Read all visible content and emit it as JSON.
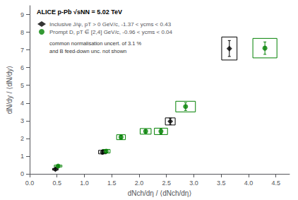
{
  "chart_data": {
    "type": "scatter",
    "title": "ALICE p-Pb",
    "subtitle": " √sNN = 5.02 TeV",
    "x_label": "dNch/dη / ⟨dNch/dη⟩",
    "y_label": "dN/dy / ⟨dN/dy⟩",
    "xlim": [
      0,
      4.75
    ],
    "ylim": [
      0,
      9.5
    ],
    "xticks": [
      {
        "value": 0,
        "label": "0.0"
      },
      0.5,
      {
        "value": 1,
        "label": "1.0"
      },
      1.5,
      {
        "value": 2,
        "label": "2.0"
      },
      2.5,
      {
        "value": 3,
        "label": "3.0"
      },
      3.5,
      {
        "value": 4,
        "label": "4.0"
      },
      4.5
    ],
    "yticks": [
      0,
      1,
      2,
      3,
      4,
      5,
      6,
      7,
      8,
      9
    ],
    "grid": false,
    "legend": "upper left",
    "annotations": [
      "common normalisation uncert. of 3.1 %",
      "and B feed-down unc. not shown"
    ],
    "series": [
      {
        "name": "Inclusive J/ψ, pT > 0 GeV/c, -1.37 < ycms < 0.43",
        "color": "#000000",
        "marker": "diamond",
        "x": [
          0.47,
          1.33,
          2.57,
          3.65
        ],
        "values": [
          0.26,
          1.23,
          2.96,
          7.08
        ],
        "yerr_stat": [
          0.05,
          0.11,
          0.18,
          0.45
        ],
        "syst_half_width": [
          0.05,
          0.07,
          0.09,
          0.14
        ],
        "syst_half_height": [
          0.05,
          0.1,
          0.2,
          0.65
        ]
      },
      {
        "name": "Prompt D, pT ∈ [2,4] GeV/c, -0.96 < ycms < 0.04",
        "color": "#008000",
        "marker": "circle",
        "x": [
          0.52,
          1.4,
          1.67,
          2.12,
          2.4,
          2.85,
          4.3
        ],
        "values": [
          0.44,
          1.28,
          2.07,
          2.4,
          2.4,
          3.8,
          7.1
        ],
        "yerr_stat": [
          0.06,
          0.08,
          0.1,
          0.1,
          0.15,
          0.22,
          0.35
        ],
        "syst_half_width": [
          0.07,
          0.07,
          0.08,
          0.1,
          0.12,
          0.18,
          0.22
        ],
        "syst_half_height": [
          0.05,
          0.1,
          0.14,
          0.16,
          0.18,
          0.3,
          0.55
        ]
      }
    ]
  }
}
